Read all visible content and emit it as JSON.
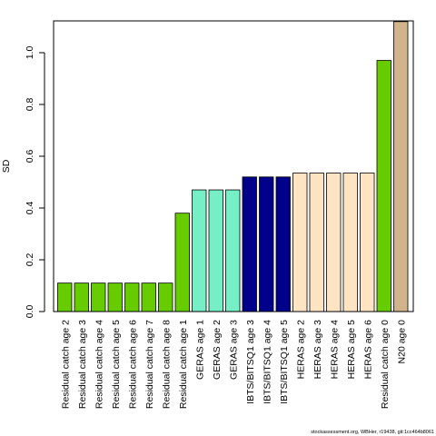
{
  "chart_data": {
    "type": "bar",
    "title": "",
    "xlabel": "",
    "ylabel": "SD",
    "ylim": [
      0,
      1.12
    ],
    "yticks": [
      "0.0",
      "0.2",
      "0.4",
      "0.6",
      "0.8",
      "1.0"
    ],
    "grid": false,
    "legend": "none",
    "categories": [
      "Residual catch age 2",
      "Residual catch age 3",
      "Residual catch age 4",
      "Residual catch age 5",
      "Residual catch age 6",
      "Residual catch age 7",
      "Residual catch age 8",
      "Residual catch age 1",
      "GERAS age 1",
      "GERAS age 2",
      "GERAS age 3",
      "IBTS/BITSQ1 age 3",
      "IBTS/BITSQ1 age 4",
      "IBTS/BITSQ1 age 5",
      "HERAS age 2",
      "HERAS age 3",
      "HERAS age 4",
      "HERAS age 5",
      "HERAS age 6",
      "Residual catch age 0",
      "N20 age 0"
    ],
    "values": [
      0.11,
      0.11,
      0.11,
      0.11,
      0.11,
      0.11,
      0.11,
      0.38,
      0.47,
      0.47,
      0.47,
      0.52,
      0.52,
      0.52,
      0.535,
      0.535,
      0.535,
      0.535,
      0.535,
      0.97,
      1.12
    ],
    "colors": [
      "#66cc00",
      "#66cc00",
      "#66cc00",
      "#66cc00",
      "#66cc00",
      "#66cc00",
      "#66cc00",
      "#66cc00",
      "#76eec6",
      "#76eec6",
      "#76eec6",
      "#00008b",
      "#00008b",
      "#00008b",
      "#ffe4c4",
      "#ffe4c4",
      "#ffe4c4",
      "#ffe4c4",
      "#ffe4c4",
      "#66cc00",
      "#d2b48c"
    ]
  },
  "footer": "stockassessment.org, WBHer, r19438, git:1cc464b8061"
}
